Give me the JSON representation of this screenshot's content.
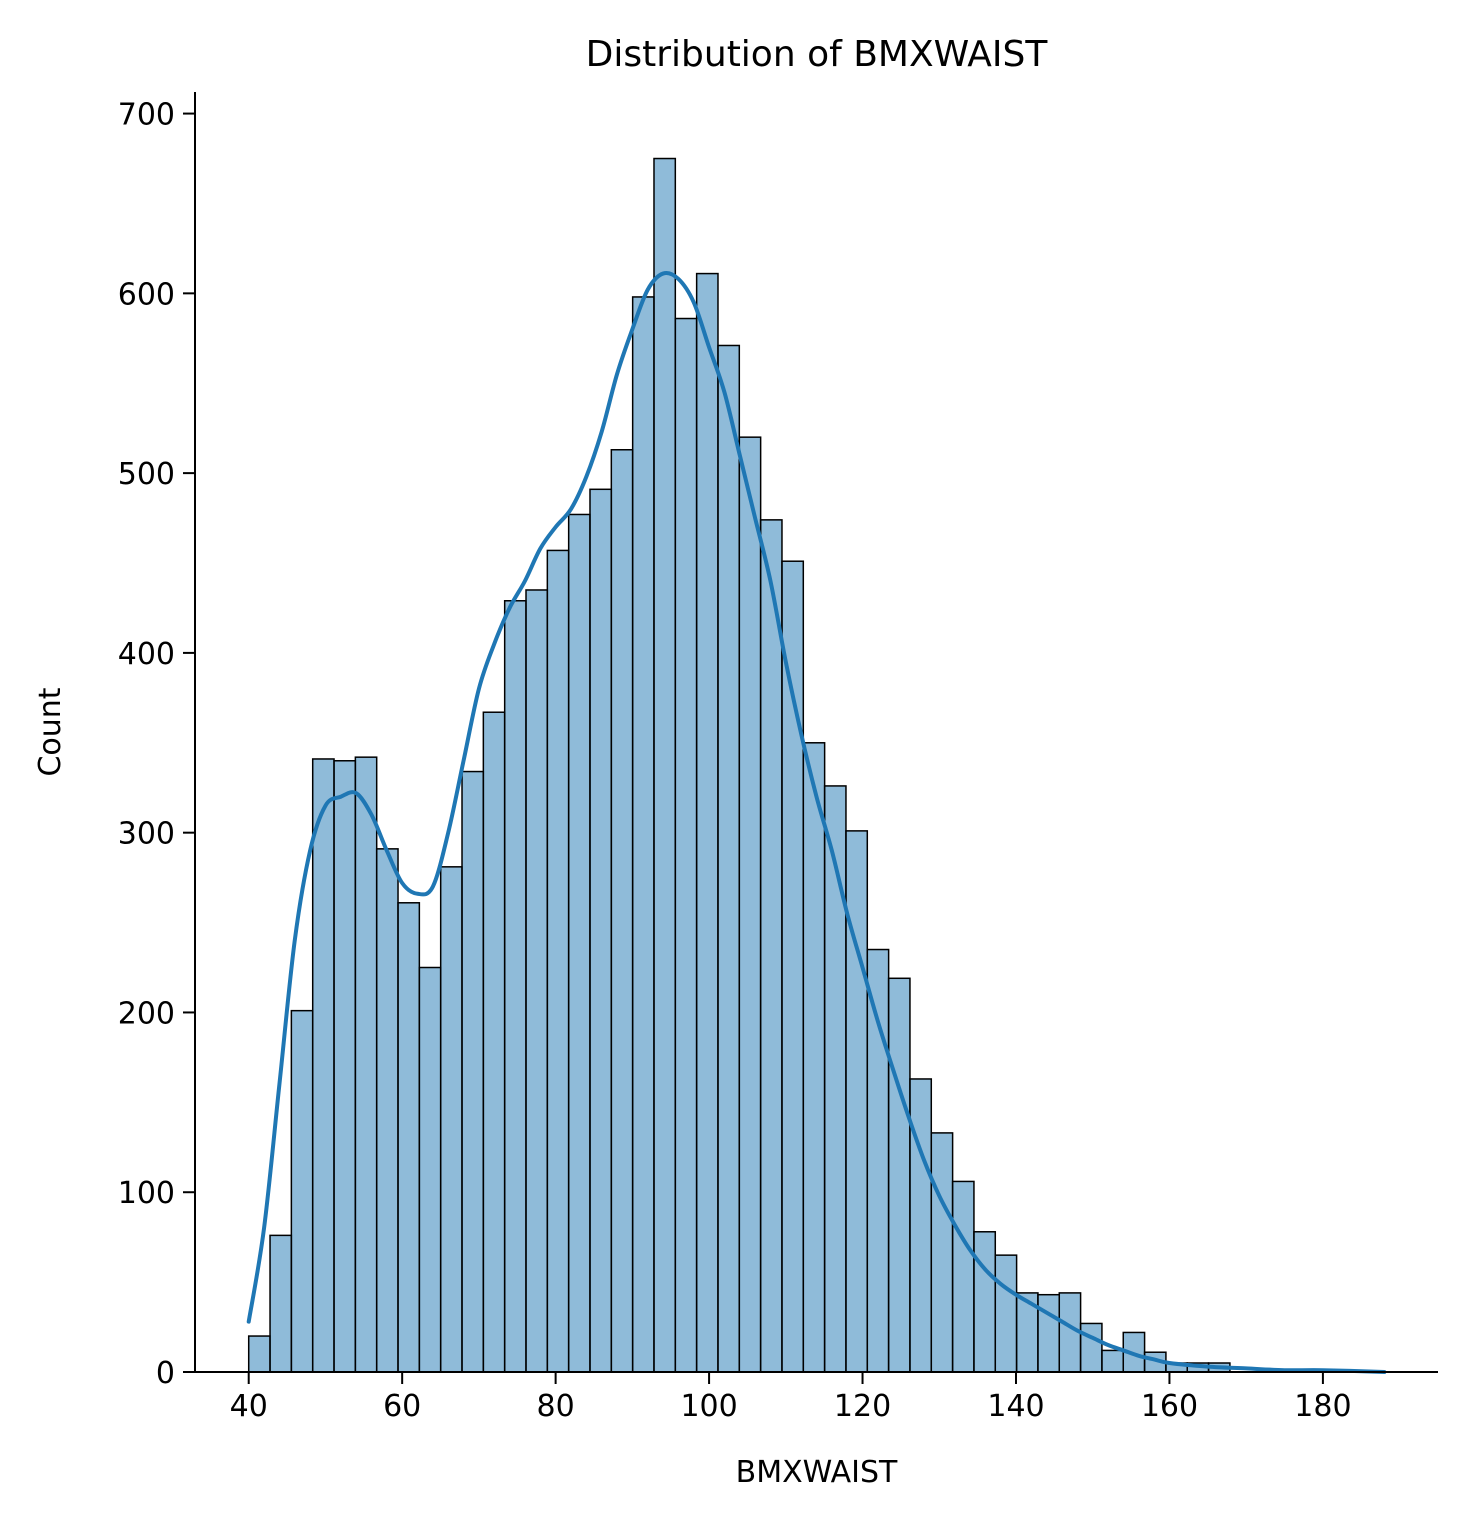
{
  "chart_data": {
    "type": "bar",
    "title": "Distribution of BMXWAIST",
    "xlabel": "BMXWAIST",
    "ylabel": "Count",
    "xlim": [
      33,
      195
    ],
    "ylim": [
      0,
      712
    ],
    "xticks": [
      40,
      60,
      80,
      100,
      120,
      140,
      160,
      180
    ],
    "yticks": [
      0,
      100,
      200,
      300,
      400,
      500,
      600,
      700
    ],
    "grid": false,
    "legend": "none",
    "bar_color": "#1f77b4",
    "bar_fill_opacity": 0.5,
    "bar_edge_color": "#000000",
    "kde_color": "#1f77b4",
    "bins": {
      "start": 40,
      "width": 2.78,
      "counts": [
        20,
        76,
        201,
        341,
        340,
        342,
        291,
        261,
        225,
        281,
        334,
        367,
        429,
        435,
        457,
        477,
        491,
        513,
        598,
        675,
        586,
        611,
        571,
        520,
        474,
        451,
        350,
        326,
        301,
        235,
        219,
        163,
        133,
        106,
        78,
        65,
        44,
        43,
        44,
        27,
        12,
        22,
        11,
        5,
        5,
        5,
        0,
        0,
        0,
        0,
        0,
        0,
        0
      ]
    },
    "kde": {
      "x": [
        40,
        42,
        44,
        46,
        48,
        50,
        52,
        54,
        56,
        58,
        60,
        62,
        64,
        66,
        68,
        70,
        72,
        74,
        76,
        78,
        80,
        82,
        84,
        86,
        88,
        90,
        92,
        94,
        96,
        98,
        100,
        102,
        104,
        106,
        108,
        110,
        112,
        114,
        116,
        118,
        120,
        122,
        124,
        126,
        128,
        130,
        132,
        134,
        136,
        138,
        140,
        142,
        144,
        146,
        148,
        150,
        152,
        154,
        156,
        158,
        160,
        165,
        170,
        175,
        180,
        188
      ],
      "y": [
        28,
        80,
        160,
        240,
        290,
        315,
        320,
        322,
        310,
        290,
        272,
        266,
        270,
        300,
        340,
        380,
        405,
        425,
        440,
        458,
        470,
        480,
        498,
        523,
        555,
        580,
        602,
        611,
        608,
        595,
        570,
        545,
        510,
        475,
        440,
        395,
        355,
        320,
        290,
        255,
        225,
        195,
        168,
        142,
        118,
        98,
        82,
        68,
        57,
        49,
        43,
        38,
        33,
        28,
        23,
        19,
        15,
        12,
        9,
        7,
        5,
        3,
        2,
        1,
        1,
        0
      ]
    }
  }
}
